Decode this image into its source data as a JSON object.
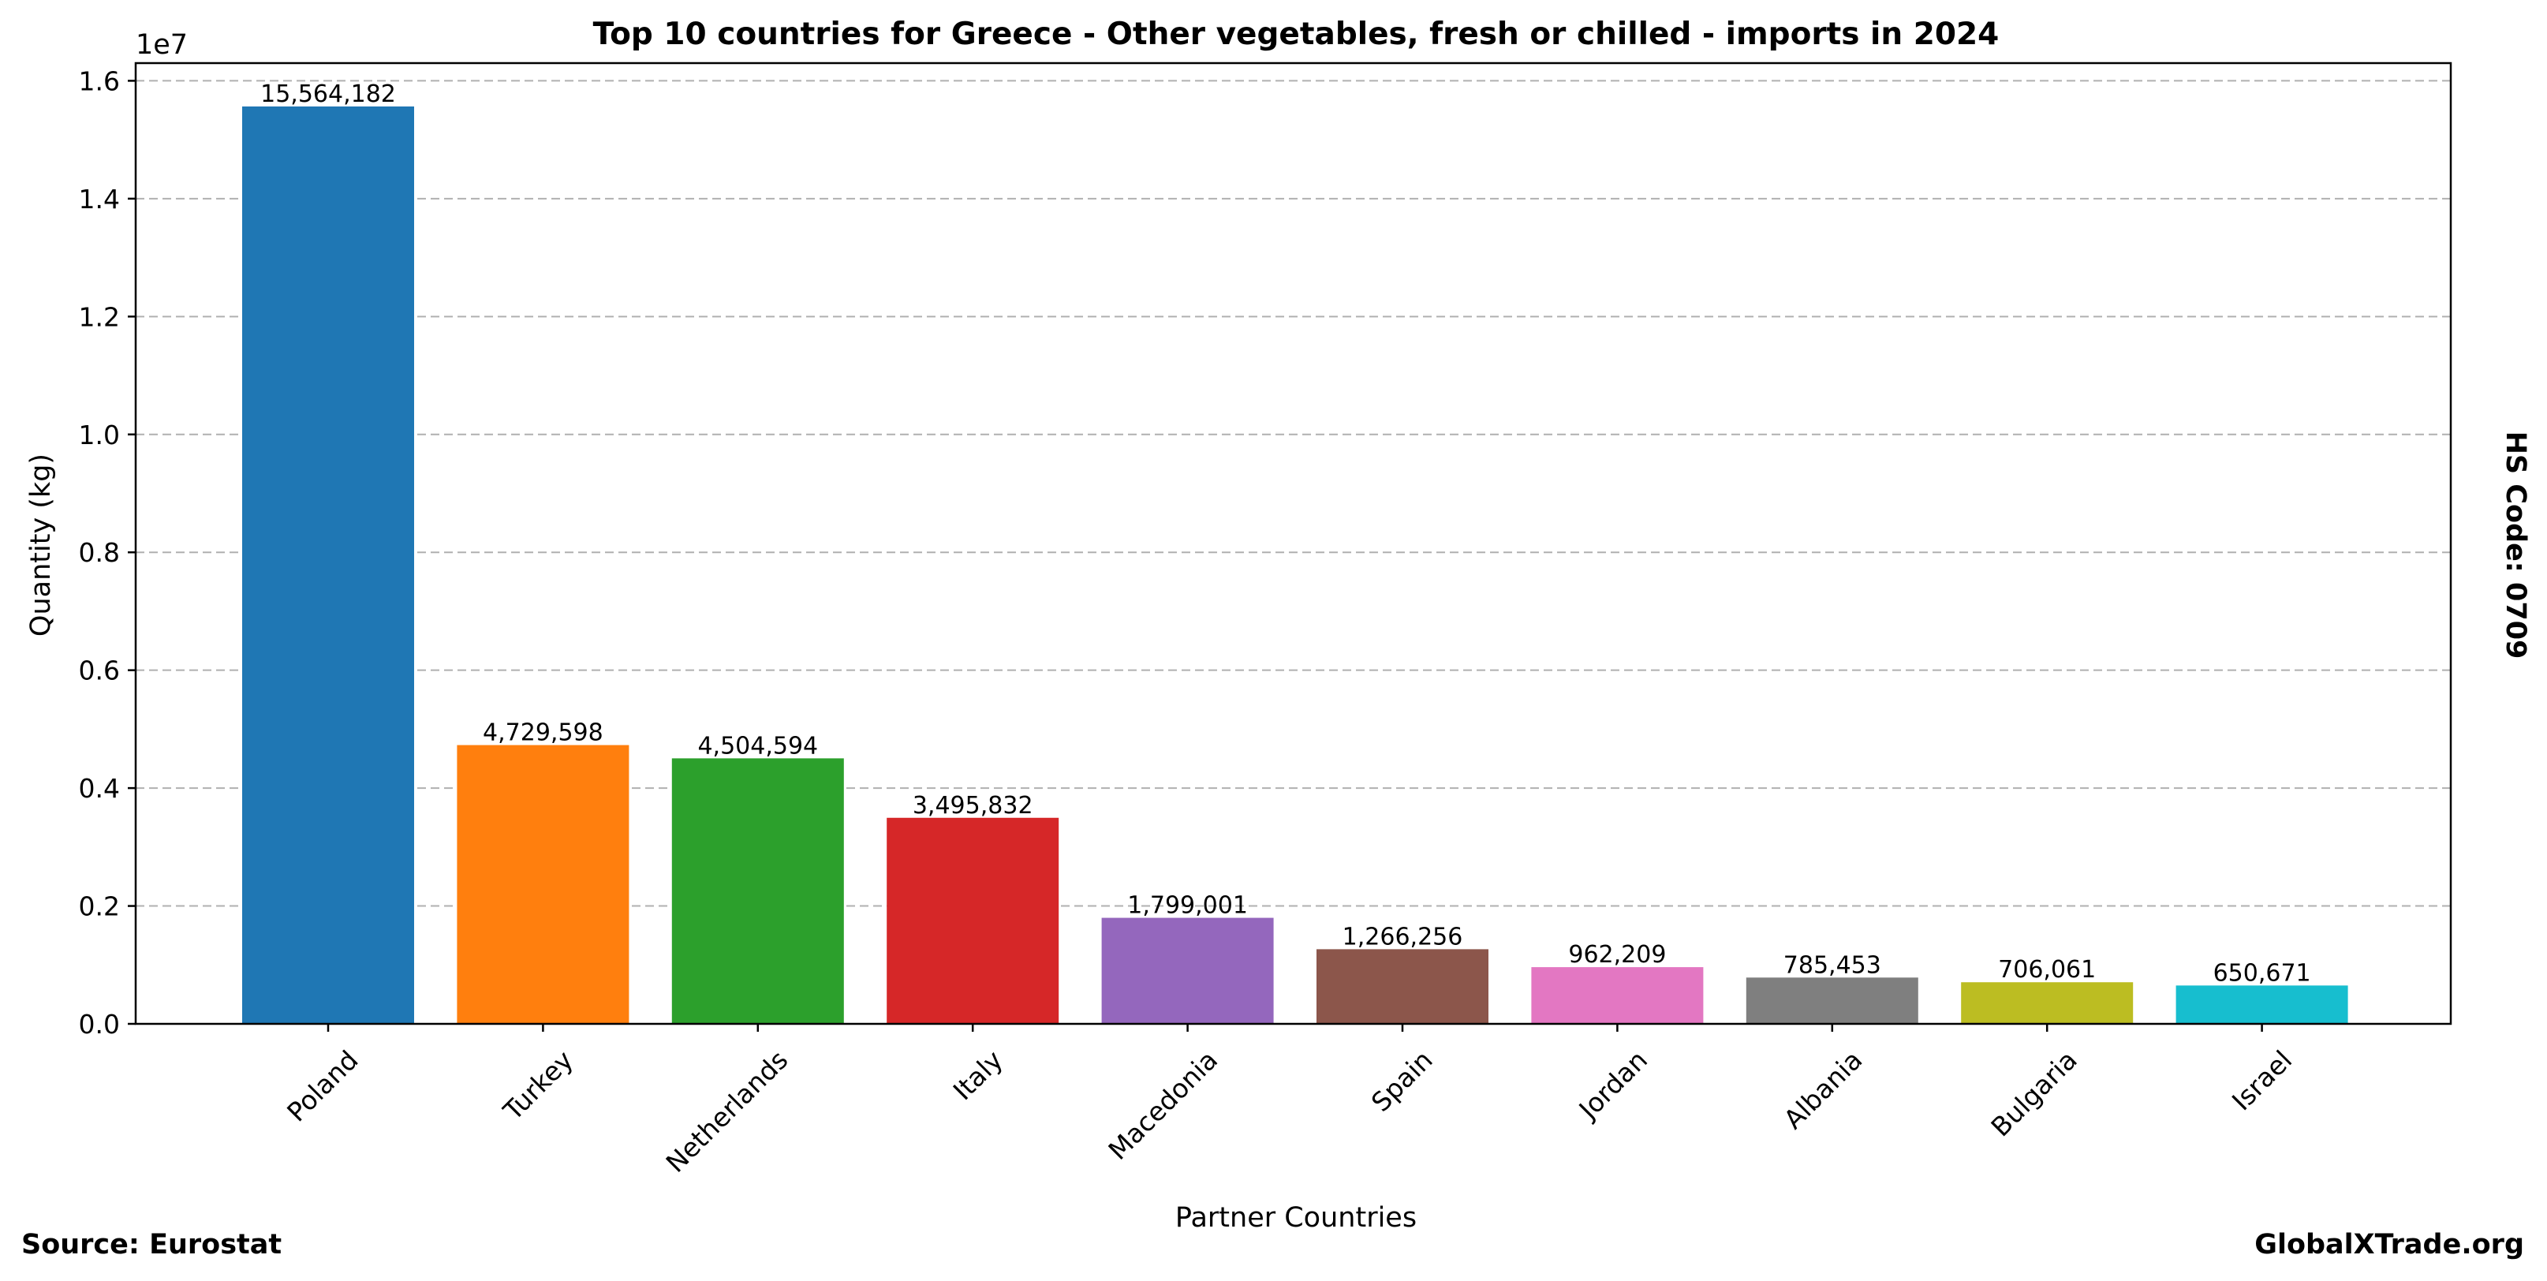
{
  "chart_data": {
    "type": "bar",
    "title": "Top 10 countries for Greece - Other vegetables, fresh or chilled - imports in 2024",
    "xlabel": "Partner Countries",
    "ylabel": "Quantity (kg)",
    "y_offset_label": "1e7",
    "ylim": [
      0,
      16300000
    ],
    "y_ticks": [
      0,
      2000000,
      4000000,
      6000000,
      8000000,
      10000000,
      12000000,
      14000000,
      16000000
    ],
    "y_tick_labels": [
      "0.0",
      "0.2",
      "0.4",
      "0.6",
      "0.8",
      "1.0",
      "1.2",
      "1.4",
      "1.6"
    ],
    "grid": true,
    "categories": [
      "Poland",
      "Turkey",
      "Netherlands",
      "Italy",
      "Macedonia",
      "Spain",
      "Jordan",
      "Albania",
      "Bulgaria",
      "Israel"
    ],
    "values": [
      15564182,
      4729598,
      4504594,
      3495832,
      1799001,
      1266256,
      962209,
      785453,
      706061,
      650671
    ],
    "value_labels": [
      "15,564,182",
      "4,729,598",
      "4,504,594",
      "3,495,832",
      "1,799,001",
      "1,266,256",
      "962,209",
      "785,453",
      "706,061",
      "650,671"
    ],
    "colors": [
      "#1f77b4",
      "#ff7f0e",
      "#2ca02c",
      "#d62728",
      "#9467bd",
      "#8c564b",
      "#e377c2",
      "#7f7f7f",
      "#bcbd22",
      "#17becf"
    ],
    "right_label": "HS Code: 0709",
    "source_label": "Source: Eurostat",
    "brand_label": "GlobalXTrade.org"
  }
}
